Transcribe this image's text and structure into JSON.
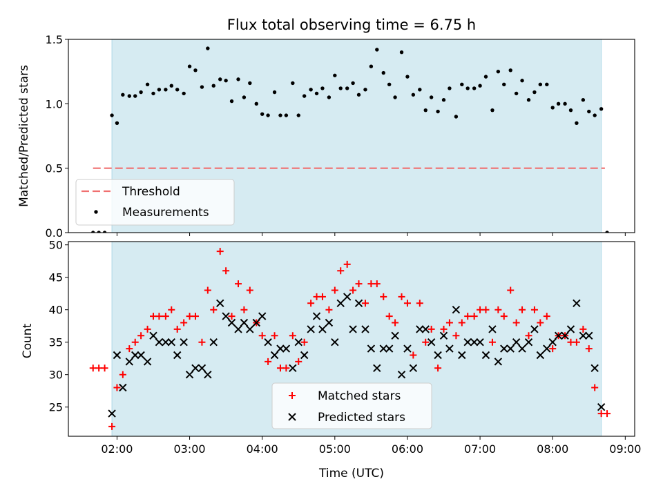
{
  "chart_data": [
    {
      "type": "scatter",
      "title": "Flux total observing time = 6.75 h",
      "xlabel": "",
      "ylabel": "Matched/Predicted stars",
      "xlim": [
        1.33,
        9.13
      ],
      "ylim": [
        0,
        1.5
      ],
      "yticks": [
        0.0,
        0.5,
        1.0,
        1.5
      ],
      "yticklabels": [
        "0.0",
        "0.5",
        "1.0",
        "1.5"
      ],
      "xticks": [
        2,
        3,
        4,
        5,
        6,
        7,
        8,
        9
      ],
      "observing_window": [
        1.93,
        8.67
      ],
      "threshold": {
        "name": "Threshold",
        "value": 0.5,
        "x_range": [
          1.67,
          8.72
        ],
        "color": "#f07070"
      },
      "legend": {
        "position": "lower-left",
        "entries": [
          "Threshold",
          "Measurements"
        ]
      },
      "series": [
        {
          "name": "Measurements",
          "color": "#000000",
          "x": [
            1.67,
            1.75,
            1.83,
            1.93,
            2.0,
            2.08,
            2.17,
            2.25,
            2.33,
            2.42,
            2.5,
            2.58,
            2.67,
            2.75,
            2.83,
            2.92,
            3.0,
            3.08,
            3.17,
            3.25,
            3.33,
            3.42,
            3.5,
            3.58,
            3.67,
            3.75,
            3.83,
            3.92,
            4.0,
            4.08,
            4.17,
            4.25,
            4.33,
            4.42,
            4.5,
            4.58,
            4.67,
            4.75,
            4.83,
            4.92,
            5.0,
            5.08,
            5.17,
            5.25,
            5.33,
            5.42,
            5.5,
            5.58,
            5.67,
            5.75,
            5.83,
            5.92,
            6.0,
            6.08,
            6.17,
            6.25,
            6.33,
            6.42,
            6.5,
            6.58,
            6.67,
            6.75,
            6.83,
            6.92,
            7.0,
            7.08,
            7.17,
            7.25,
            7.33,
            7.42,
            7.5,
            7.58,
            7.67,
            7.75,
            7.83,
            7.92,
            8.0,
            8.08,
            8.17,
            8.25,
            8.33,
            8.42,
            8.5,
            8.58,
            8.67,
            8.75
          ],
          "y": [
            0.0,
            0.0,
            0.0,
            0.91,
            0.85,
            1.07,
            1.06,
            1.06,
            1.09,
            1.15,
            1.08,
            1.11,
            1.11,
            1.14,
            1.11,
            1.08,
            1.29,
            1.26,
            1.13,
            1.43,
            1.14,
            1.19,
            1.18,
            1.02,
            1.19,
            1.05,
            1.16,
            1.0,
            0.92,
            0.91,
            1.09,
            0.91,
            0.91,
            1.16,
            0.91,
            1.06,
            1.11,
            1.08,
            1.12,
            1.05,
            1.22,
            1.12,
            1.12,
            1.16,
            1.07,
            1.11,
            1.29,
            1.42,
            1.24,
            1.15,
            1.05,
            1.4,
            1.21,
            1.07,
            1.11,
            0.95,
            1.05,
            0.94,
            1.03,
            1.12,
            0.9,
            1.15,
            1.12,
            1.12,
            1.14,
            1.21,
            0.95,
            1.25,
            1.15,
            1.26,
            1.08,
            1.18,
            1.03,
            1.09,
            1.15,
            1.15,
            0.97,
            1.0,
            1.0,
            0.95,
            0.85,
            1.03,
            0.94,
            0.91,
            0.96,
            0.0
          ]
        }
      ]
    },
    {
      "type": "scatter",
      "title": "",
      "xlabel": "Time (UTC)",
      "ylabel": "Count",
      "xlim": [
        1.33,
        9.13
      ],
      "ylim": [
        20.5,
        50.5
      ],
      "yticks": [
        25,
        30,
        35,
        40,
        45,
        50
      ],
      "yticklabels": [
        "25",
        "30",
        "35",
        "40",
        "45",
        "50"
      ],
      "xticks": [
        2,
        3,
        4,
        5,
        6,
        7,
        8,
        9
      ],
      "xticklabels": [
        "02:00",
        "03:00",
        "04:00",
        "05:00",
        "06:00",
        "07:00",
        "08:00",
        "09:00"
      ],
      "observing_window": [
        1.93,
        8.67
      ],
      "legend": {
        "position": "lower-center",
        "entries": [
          "Matched stars",
          "Predicted stars"
        ]
      },
      "series": [
        {
          "name": "Matched stars",
          "marker": "+",
          "color": "#ff0000",
          "x": [
            1.67,
            1.75,
            1.83,
            1.93,
            2.0,
            2.08,
            2.17,
            2.25,
            2.33,
            2.42,
            2.5,
            2.58,
            2.67,
            2.75,
            2.83,
            2.92,
            3.0,
            3.08,
            3.17,
            3.25,
            3.33,
            3.42,
            3.5,
            3.58,
            3.67,
            3.75,
            3.83,
            3.92,
            4.0,
            4.08,
            4.17,
            4.25,
            4.33,
            4.42,
            4.5,
            4.58,
            4.67,
            4.75,
            4.83,
            4.92,
            5.0,
            5.08,
            5.17,
            5.25,
            5.33,
            5.42,
            5.5,
            5.58,
            5.67,
            5.75,
            5.83,
            5.92,
            6.0,
            6.08,
            6.17,
            6.25,
            6.33,
            6.42,
            6.5,
            6.58,
            6.67,
            6.75,
            6.83,
            6.92,
            7.0,
            7.08,
            7.17,
            7.25,
            7.33,
            7.42,
            7.5,
            7.58,
            7.67,
            7.75,
            7.83,
            7.92,
            8.0,
            8.08,
            8.17,
            8.25,
            8.33,
            8.42,
            8.5,
            8.58,
            8.67,
            8.75
          ],
          "y": [
            31,
            31,
            31,
            22,
            28,
            30,
            34,
            35,
            36,
            37,
            39,
            39,
            39,
            40,
            37,
            38,
            39,
            39,
            35,
            43,
            40,
            49,
            46,
            39,
            44,
            40,
            43,
            38,
            36,
            32,
            36,
            31,
            31,
            36,
            32,
            35,
            41,
            42,
            42,
            40,
            43,
            46,
            47,
            43,
            44,
            41,
            44,
            44,
            42,
            39,
            38,
            42,
            41,
            33,
            41,
            35,
            37,
            31,
            37,
            38,
            36,
            38,
            39,
            39,
            40,
            40,
            35,
            40,
            39,
            43,
            38,
            40,
            36,
            40,
            38,
            39,
            34,
            36,
            36,
            35,
            35,
            37,
            34,
            28,
            24,
            24
          ]
        },
        {
          "name": "Predicted stars",
          "marker": "x",
          "color": "#000000",
          "x": [
            1.93,
            2.0,
            2.08,
            2.17,
            2.25,
            2.33,
            2.42,
            2.5,
            2.58,
            2.67,
            2.75,
            2.83,
            2.92,
            3.0,
            3.08,
            3.17,
            3.25,
            3.33,
            3.42,
            3.5,
            3.58,
            3.67,
            3.75,
            3.83,
            3.92,
            4.0,
            4.08,
            4.17,
            4.25,
            4.33,
            4.42,
            4.5,
            4.58,
            4.67,
            4.75,
            4.83,
            4.92,
            5.0,
            5.08,
            5.17,
            5.25,
            5.33,
            5.42,
            5.5,
            5.58,
            5.67,
            5.75,
            5.83,
            5.92,
            6.0,
            6.08,
            6.17,
            6.25,
            6.33,
            6.42,
            6.5,
            6.58,
            6.67,
            6.75,
            6.83,
            6.92,
            7.0,
            7.08,
            7.17,
            7.25,
            7.33,
            7.42,
            7.5,
            7.58,
            7.67,
            7.75,
            7.83,
            7.92,
            8.0,
            8.08,
            8.17,
            8.25,
            8.33,
            8.42,
            8.5,
            8.58,
            8.67
          ],
          "y": [
            24,
            33,
            28,
            32,
            33,
            33,
            32,
            36,
            35,
            35,
            35,
            33,
            35,
            30,
            31,
            31,
            30,
            35,
            41,
            39,
            38,
            37,
            38,
            37,
            38,
            39,
            35,
            33,
            34,
            34,
            31,
            35,
            33,
            37,
            39,
            37,
            38,
            35,
            41,
            42,
            37,
            41,
            37,
            34,
            31,
            34,
            34,
            36,
            30,
            34,
            31,
            37,
            37,
            35,
            33,
            36,
            34,
            40,
            33,
            35,
            35,
            35,
            33,
            37,
            32,
            34,
            34,
            35,
            34,
            35,
            37,
            33,
            34,
            35,
            36,
            36,
            37,
            41,
            36,
            36,
            31,
            25
          ]
        }
      ]
    }
  ]
}
